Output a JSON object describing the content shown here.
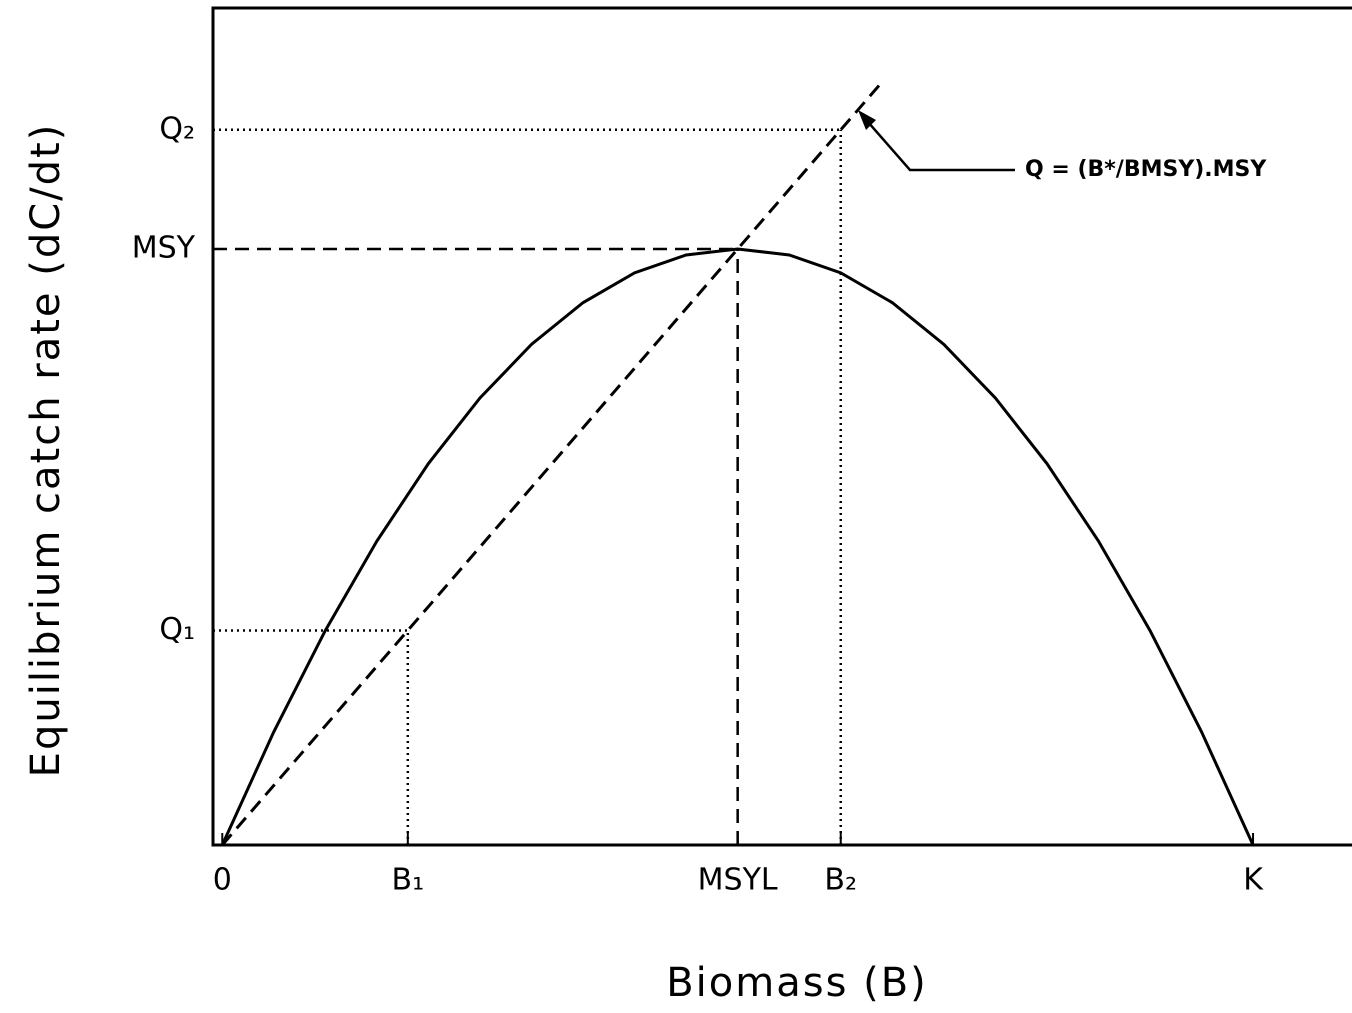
{
  "chart_data": {
    "type": "line",
    "x_label": "Biomass (B)",
    "y_label": "Equilibrium catch rate (dC/dt)",
    "xlim": [
      -0.9,
      109.6
    ],
    "ylim": [
      0,
      140
    ],
    "xticks": [
      0,
      {
        "value": 18,
        "label": "B₁"
      },
      {
        "value": 50,
        "label": "MSYL"
      },
      {
        "value": 60,
        "label": "B₂"
      },
      {
        "value": 100,
        "label": "K"
      }
    ],
    "yticks": [
      {
        "value": 36,
        "label": "Q₁"
      },
      {
        "value": 100,
        "label": "MSY"
      },
      {
        "value": 120,
        "label": "Q₂"
      }
    ],
    "series": [
      {
        "style": "solid",
        "color": "#000000",
        "x": [
          0,
          5,
          10,
          15,
          20,
          25,
          30,
          35,
          40,
          45,
          50,
          55,
          60,
          65,
          70,
          75,
          80,
          85,
          90,
          95,
          100
        ],
        "values": [
          0,
          19,
          36,
          51,
          64,
          75,
          84,
          91,
          96,
          99,
          100,
          99,
          96,
          91,
          84,
          75,
          64,
          51,
          36,
          19,
          0
        ]
      },
      {
        "style": "dashed",
        "color": "#000000",
        "x": [
          0,
          64
        ],
        "values": [
          0,
          128
        ]
      }
    ],
    "guides": [
      {
        "x": 18,
        "y": 36,
        "style": "dotted"
      },
      {
        "x": 50,
        "y": 100,
        "style": "dashed"
      },
      {
        "x": 60,
        "y": 120,
        "style": "dotted"
      }
    ],
    "annotation": "Q = (B*/BMSY).MSY"
  }
}
